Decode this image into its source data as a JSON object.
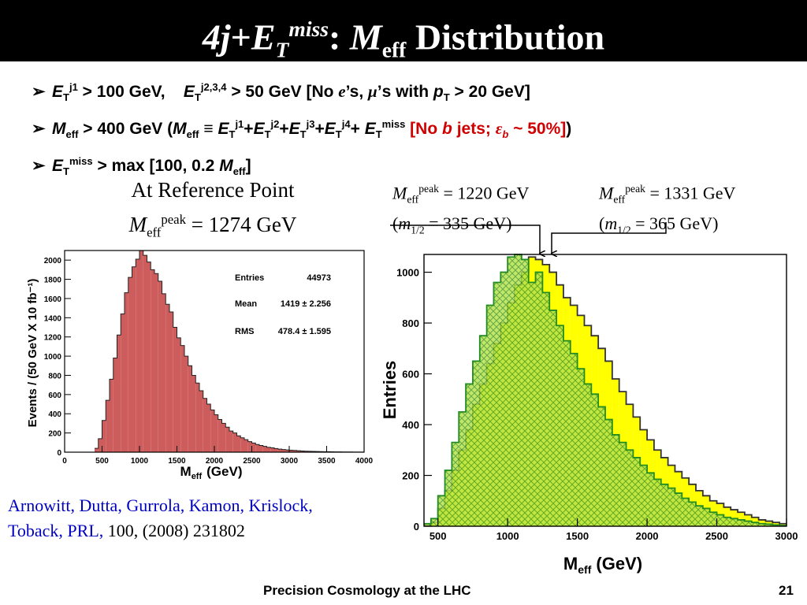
{
  "title": {
    "jets": "4",
    "j": "j",
    "plus": "+",
    "e": "E",
    "t": "T",
    "miss": "miss",
    "colon": ":",
    "m": "M",
    "eff": "eff",
    "word": "Distribution"
  },
  "bullets": {
    "b1": {
      "e": "E",
      "t": "T",
      "j1": "j1",
      "cut1": "> 100 GeV,",
      "e2": "E",
      "t2": "T",
      "j234": "j2,3,4",
      "cut2": "> 50 GeV [No",
      "e_sym": "e",
      "s1": "’s,",
      "mu": "μ",
      "s2": "’s with",
      "p": "p",
      "pt": "T",
      "cut3": "> 20 GeV]"
    },
    "b2": {
      "m": "M",
      "eff": "eff",
      "cut": "> 400 GeV (",
      "m2": "M",
      "eff2": "eff",
      "equiv": "≡",
      "sum": [
        {
          "e": "E",
          "t": "T",
          "j": "j1",
          "plus": "+"
        },
        {
          "e": "E",
          "t": "T",
          "j": "j2",
          "plus": "+"
        },
        {
          "e": "E",
          "t": "T",
          "j": "j3",
          "plus": "+"
        },
        {
          "e": "E",
          "t": "T",
          "j": "j4",
          "plus": "+"
        }
      ],
      "e5": "E",
      "t5": "T",
      "miss": "miss",
      "red_open": "[No",
      "b": "b",
      "red_jets": "jets;",
      "eps": "ε",
      "epsb": "b",
      "red_tail": "~ 50%]",
      "close": ")"
    },
    "b3": {
      "e": "E",
      "t": "T",
      "miss": "miss",
      "cut": "> max [100, 0.2",
      "m": "M",
      "eff": "eff",
      "close": "]"
    }
  },
  "reference": {
    "line1": "At Reference Point",
    "m": "M",
    "eff": "eff",
    "peak": "peak",
    "value": "= 1274 GeV"
  },
  "peak_labels": [
    {
      "m": "M",
      "eff": "eff",
      "peak": "peak",
      "value": "= 1220 GeV",
      "open": "(",
      "m12": "m",
      "half": "1/2",
      "mval": "= 335 GeV)"
    },
    {
      "m": "M",
      "eff": "eff",
      "peak": "peak",
      "value": "= 1331 GeV",
      "open": "(",
      "m12": "m",
      "half": "1/2",
      "mval": "= 365 GeV)"
    }
  ],
  "citation": {
    "authors": "Arnowitt, Dutta, Gurrola, Kamon, Krislock, Toback, PRL,",
    "ref": "100, (2008) 231802"
  },
  "footer": {
    "text": "Precision Cosmology at the LHC",
    "page": "21"
  },
  "colors": {
    "left_fill": "#cd5c5c",
    "right_fill_yellow": "#ffff00",
    "right_fill_green": "#99dd33",
    "right_line_green": "#228B22",
    "red_text": "#d00000",
    "blue_text": "#0000c0"
  },
  "chart_data": [
    {
      "type": "bar",
      "id": "left",
      "xlabel": "M_eff (GeV)",
      "xlabel_m": "M",
      "xlabel_sub": "eff",
      "xlabel_unit": "(GeV)",
      "ylabel": "Events / (50 GeV X 10 fb⁻¹)",
      "xlim": [
        0,
        4000
      ],
      "ylim": [
        0,
        2100
      ],
      "xticks": [
        0,
        500,
        1000,
        1500,
        2000,
        2500,
        3000,
        3500,
        4000
      ],
      "yticks": [
        0,
        200,
        400,
        600,
        800,
        1000,
        1200,
        1400,
        1600,
        1800,
        2000
      ],
      "grid": false,
      "stats": {
        "entries_label": "Entries",
        "entries": "44973",
        "mean_label": "Mean",
        "mean": "1419 ± 2.256",
        "rms_label": "RMS",
        "rms": "478.4 ± 1.595"
      },
      "bin_width": 50,
      "bins_start": 400,
      "values": [
        40,
        140,
        330,
        540,
        760,
        980,
        1220,
        1440,
        1660,
        1820,
        1930,
        2010,
        2100,
        2050,
        1980,
        1900,
        1860,
        1780,
        1650,
        1540,
        1460,
        1300,
        1190,
        1110,
        1000,
        900,
        800,
        720,
        640,
        560,
        500,
        440,
        390,
        340,
        300,
        260,
        220,
        200,
        170,
        150,
        130,
        110,
        95,
        80,
        70,
        60,
        50,
        45,
        38,
        32,
        28,
        24,
        20,
        18,
        15,
        12,
        10,
        9,
        8,
        7,
        6,
        5,
        5,
        4,
        3,
        3,
        2,
        2,
        2,
        1,
        1,
        1
      ]
    },
    {
      "type": "bar",
      "id": "right",
      "xlabel": "M_eff (GeV)",
      "xlabel_m": "M",
      "xlabel_sub": "eff",
      "xlabel_unit": "(GeV)",
      "ylabel": "Entries",
      "xlim": [
        400,
        3000
      ],
      "ylim": [
        0,
        1070
      ],
      "xticks": [
        500,
        1000,
        1500,
        2000,
        2500,
        3000
      ],
      "yticks": [
        0,
        200,
        400,
        600,
        800,
        1000
      ],
      "grid": false,
      "bin_width": 50,
      "bins_start": 400,
      "series": [
        {
          "style": "yellow",
          "values": [
            5,
            15,
            70,
            140,
            220,
            300,
            380,
            480,
            560,
            640,
            720,
            800,
            880,
            950,
            1000,
            1060,
            1050,
            1030,
            1000,
            950,
            900,
            870,
            830,
            790,
            750,
            700,
            650,
            580,
            530,
            480,
            430,
            380,
            340,
            300,
            270,
            240,
            215,
            190,
            165,
            140,
            120,
            100,
            90,
            75,
            65,
            55,
            45,
            35,
            25,
            20,
            15,
            10
          ]
        },
        {
          "style": "green-hatched",
          "values": [
            10,
            30,
            120,
            220,
            330,
            450,
            560,
            650,
            750,
            870,
            960,
            1000,
            1060,
            1070,
            1050,
            960,
            1000,
            920,
            850,
            790,
            730,
            680,
            620,
            560,
            520,
            470,
            420,
            360,
            330,
            300,
            270,
            240,
            210,
            185,
            165,
            150,
            130,
            110,
            95,
            80,
            70,
            55,
            45,
            35,
            30,
            25,
            20,
            15,
            10,
            8,
            5,
            3
          ]
        }
      ]
    }
  ]
}
